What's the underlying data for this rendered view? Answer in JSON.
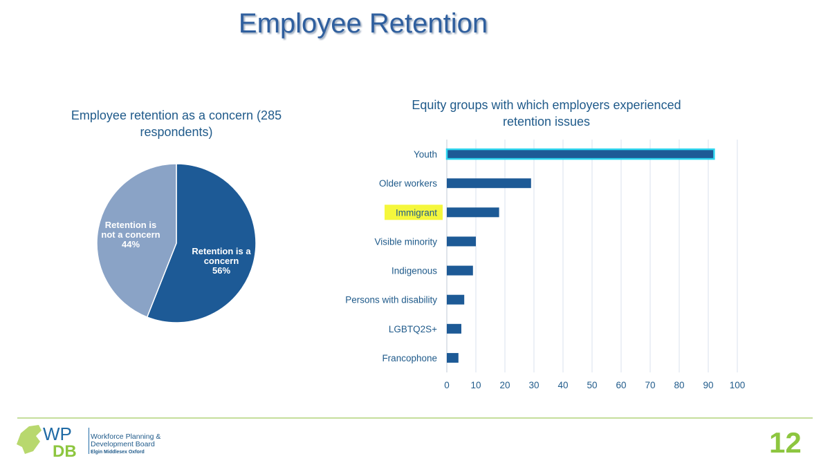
{
  "slide": {
    "title": "Employee Retention",
    "page_number": "12"
  },
  "logo": {
    "line1": "Workforce Planning &",
    "line2": "Development Board",
    "line3": "Elgin Middlesex Oxford",
    "wp": "WP",
    "db": "DB"
  },
  "chart_data": [
    {
      "type": "pie",
      "title": "Employee retention as a concern (285 respondents)",
      "title_line1": "Employee retention as a concern (285",
      "title_line2": "respondents)",
      "slices": [
        {
          "label": "Retention is a concern",
          "label_lines": [
            "Retention is a",
            "concern",
            "56%"
          ],
          "value": 56,
          "color": "#1d5a96"
        },
        {
          "label": "Retention is not a concern",
          "label_lines": [
            "Retention is",
            "not a concern",
            "44%"
          ],
          "value": 44,
          "color": "#8aa3c6"
        }
      ]
    },
    {
      "type": "bar",
      "orientation": "horizontal",
      "title": "Equity groups with which employers experienced retention issues",
      "title_line1": "Equity groups with which employers experienced",
      "title_line2": "retention issues",
      "categories": [
        "Youth",
        "Older workers",
        "Immigrant",
        "Visible minority",
        "Indigenous",
        "Persons with disability",
        "LGBTQ2S+",
        "Francophone"
      ],
      "values": [
        92,
        29,
        18,
        10,
        9,
        6,
        5,
        4
      ],
      "xlim": [
        0,
        100
      ],
      "xticks": [
        0,
        10,
        20,
        30,
        40,
        50,
        60,
        70,
        80,
        90,
        100
      ],
      "grid": true,
      "bar_color": "#1d5a96",
      "highlighted_bar": "Youth",
      "highlight_outline_color": "#2fd6f0",
      "highlighted_label": "Immigrant",
      "highlight_label_color": "#f5f73c"
    }
  ]
}
